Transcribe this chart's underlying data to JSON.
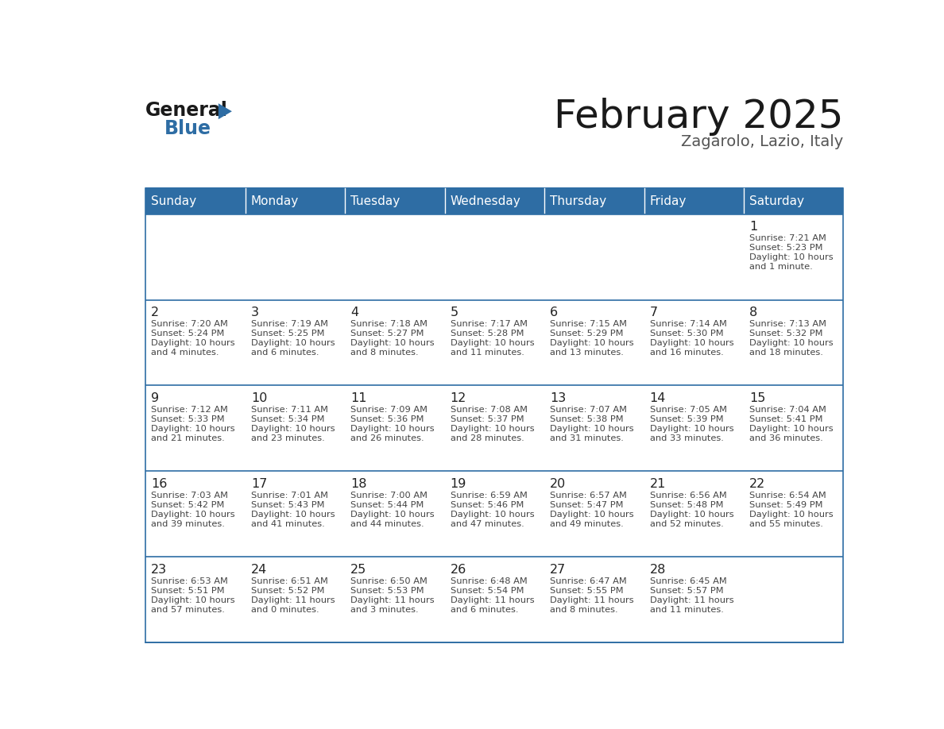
{
  "title": "February 2025",
  "subtitle": "Zagarolo, Lazio, Italy",
  "header_bg": "#2E6DA4",
  "header_text_color": "#FFFFFF",
  "cell_bg": "#FFFFFF",
  "row1_bg": "#F0F2F5",
  "border_color": "#2E6DA4",
  "text_color": "#333333",
  "day_headers": [
    "Sunday",
    "Monday",
    "Tuesday",
    "Wednesday",
    "Thursday",
    "Friday",
    "Saturday"
  ],
  "days": [
    {
      "day": 1,
      "col": 6,
      "row": 0,
      "sunrise": "7:21 AM",
      "sunset": "5:23 PM",
      "daylight": "10 hours",
      "daylight2": "and 1 minute."
    },
    {
      "day": 2,
      "col": 0,
      "row": 1,
      "sunrise": "7:20 AM",
      "sunset": "5:24 PM",
      "daylight": "10 hours",
      "daylight2": "and 4 minutes."
    },
    {
      "day": 3,
      "col": 1,
      "row": 1,
      "sunrise": "7:19 AM",
      "sunset": "5:25 PM",
      "daylight": "10 hours",
      "daylight2": "and 6 minutes."
    },
    {
      "day": 4,
      "col": 2,
      "row": 1,
      "sunrise": "7:18 AM",
      "sunset": "5:27 PM",
      "daylight": "10 hours",
      "daylight2": "and 8 minutes."
    },
    {
      "day": 5,
      "col": 3,
      "row": 1,
      "sunrise": "7:17 AM",
      "sunset": "5:28 PM",
      "daylight": "10 hours",
      "daylight2": "and 11 minutes."
    },
    {
      "day": 6,
      "col": 4,
      "row": 1,
      "sunrise": "7:15 AM",
      "sunset": "5:29 PM",
      "daylight": "10 hours",
      "daylight2": "and 13 minutes."
    },
    {
      "day": 7,
      "col": 5,
      "row": 1,
      "sunrise": "7:14 AM",
      "sunset": "5:30 PM",
      "daylight": "10 hours",
      "daylight2": "and 16 minutes."
    },
    {
      "day": 8,
      "col": 6,
      "row": 1,
      "sunrise": "7:13 AM",
      "sunset": "5:32 PM",
      "daylight": "10 hours",
      "daylight2": "and 18 minutes."
    },
    {
      "day": 9,
      "col": 0,
      "row": 2,
      "sunrise": "7:12 AM",
      "sunset": "5:33 PM",
      "daylight": "10 hours",
      "daylight2": "and 21 minutes."
    },
    {
      "day": 10,
      "col": 1,
      "row": 2,
      "sunrise": "7:11 AM",
      "sunset": "5:34 PM",
      "daylight": "10 hours",
      "daylight2": "and 23 minutes."
    },
    {
      "day": 11,
      "col": 2,
      "row": 2,
      "sunrise": "7:09 AM",
      "sunset": "5:36 PM",
      "daylight": "10 hours",
      "daylight2": "and 26 minutes."
    },
    {
      "day": 12,
      "col": 3,
      "row": 2,
      "sunrise": "7:08 AM",
      "sunset": "5:37 PM",
      "daylight": "10 hours",
      "daylight2": "and 28 minutes."
    },
    {
      "day": 13,
      "col": 4,
      "row": 2,
      "sunrise": "7:07 AM",
      "sunset": "5:38 PM",
      "daylight": "10 hours",
      "daylight2": "and 31 minutes."
    },
    {
      "day": 14,
      "col": 5,
      "row": 2,
      "sunrise": "7:05 AM",
      "sunset": "5:39 PM",
      "daylight": "10 hours",
      "daylight2": "and 33 minutes."
    },
    {
      "day": 15,
      "col": 6,
      "row": 2,
      "sunrise": "7:04 AM",
      "sunset": "5:41 PM",
      "daylight": "10 hours",
      "daylight2": "and 36 minutes."
    },
    {
      "day": 16,
      "col": 0,
      "row": 3,
      "sunrise": "7:03 AM",
      "sunset": "5:42 PM",
      "daylight": "10 hours",
      "daylight2": "and 39 minutes."
    },
    {
      "day": 17,
      "col": 1,
      "row": 3,
      "sunrise": "7:01 AM",
      "sunset": "5:43 PM",
      "daylight": "10 hours",
      "daylight2": "and 41 minutes."
    },
    {
      "day": 18,
      "col": 2,
      "row": 3,
      "sunrise": "7:00 AM",
      "sunset": "5:44 PM",
      "daylight": "10 hours",
      "daylight2": "and 44 minutes."
    },
    {
      "day": 19,
      "col": 3,
      "row": 3,
      "sunrise": "6:59 AM",
      "sunset": "5:46 PM",
      "daylight": "10 hours",
      "daylight2": "and 47 minutes."
    },
    {
      "day": 20,
      "col": 4,
      "row": 3,
      "sunrise": "6:57 AM",
      "sunset": "5:47 PM",
      "daylight": "10 hours",
      "daylight2": "and 49 minutes."
    },
    {
      "day": 21,
      "col": 5,
      "row": 3,
      "sunrise": "6:56 AM",
      "sunset": "5:48 PM",
      "daylight": "10 hours",
      "daylight2": "and 52 minutes."
    },
    {
      "day": 22,
      "col": 6,
      "row": 3,
      "sunrise": "6:54 AM",
      "sunset": "5:49 PM",
      "daylight": "10 hours",
      "daylight2": "and 55 minutes."
    },
    {
      "day": 23,
      "col": 0,
      "row": 4,
      "sunrise": "6:53 AM",
      "sunset": "5:51 PM",
      "daylight": "10 hours",
      "daylight2": "and 57 minutes."
    },
    {
      "day": 24,
      "col": 1,
      "row": 4,
      "sunrise": "6:51 AM",
      "sunset": "5:52 PM",
      "daylight": "11 hours",
      "daylight2": "and 0 minutes."
    },
    {
      "day": 25,
      "col": 2,
      "row": 4,
      "sunrise": "6:50 AM",
      "sunset": "5:53 PM",
      "daylight": "11 hours",
      "daylight2": "and 3 minutes."
    },
    {
      "day": 26,
      "col": 3,
      "row": 4,
      "sunrise": "6:48 AM",
      "sunset": "5:54 PM",
      "daylight": "11 hours",
      "daylight2": "and 6 minutes."
    },
    {
      "day": 27,
      "col": 4,
      "row": 4,
      "sunrise": "6:47 AM",
      "sunset": "5:55 PM",
      "daylight": "11 hours",
      "daylight2": "and 8 minutes."
    },
    {
      "day": 28,
      "col": 5,
      "row": 4,
      "sunrise": "6:45 AM",
      "sunset": "5:57 PM",
      "daylight": "11 hours",
      "daylight2": "and 11 minutes."
    }
  ]
}
